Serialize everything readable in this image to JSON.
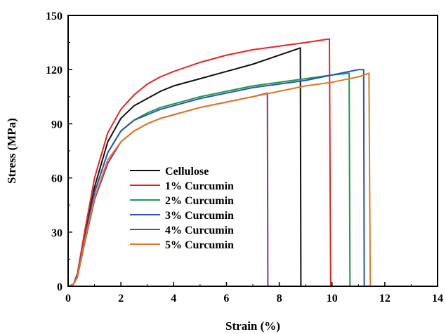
{
  "chart_data": {
    "type": "line",
    "title": "",
    "xlabel": "Strain (%)",
    "ylabel": "Stress (MPa)",
    "xlim": [
      0,
      14
    ],
    "ylim": [
      0,
      150
    ],
    "xticks": [
      0,
      2,
      4,
      6,
      8,
      10,
      12,
      14
    ],
    "yticks": [
      0,
      30,
      60,
      90,
      120,
      150
    ],
    "grid": false,
    "legend_position": "lower-center",
    "series": [
      {
        "name": "Cellulose",
        "color": "#111111",
        "points": [
          [
            0,
            0
          ],
          [
            0.2,
            1
          ],
          [
            0.35,
            6
          ],
          [
            0.6,
            25
          ],
          [
            1.0,
            55
          ],
          [
            1.5,
            80
          ],
          [
            2.0,
            93
          ],
          [
            2.5,
            100
          ],
          [
            3.0,
            104
          ],
          [
            3.5,
            108
          ],
          [
            4.0,
            111
          ],
          [
            5.0,
            115
          ],
          [
            6.0,
            119
          ],
          [
            7.0,
            123
          ],
          [
            8.0,
            128
          ],
          [
            8.8,
            132
          ],
          [
            8.82,
            0
          ]
        ]
      },
      {
        "name": "1% Curcumin",
        "color": "#e8231f",
        "points": [
          [
            0,
            0
          ],
          [
            0.2,
            1
          ],
          [
            0.35,
            7
          ],
          [
            0.6,
            28
          ],
          [
            1.0,
            60
          ],
          [
            1.5,
            85
          ],
          [
            2.0,
            98
          ],
          [
            2.5,
            106
          ],
          [
            3.0,
            112
          ],
          [
            3.5,
            116
          ],
          [
            4.0,
            119
          ],
          [
            5.0,
            124
          ],
          [
            6.0,
            128
          ],
          [
            7.0,
            131
          ],
          [
            8.0,
            133
          ],
          [
            9.0,
            135
          ],
          [
            9.9,
            137
          ],
          [
            9.95,
            0
          ]
        ]
      },
      {
        "name": "2% Curcumin",
        "color": "#1e9a4a",
        "points": [
          [
            0,
            0
          ],
          [
            0.2,
            1
          ],
          [
            0.35,
            6
          ],
          [
            0.6,
            24
          ],
          [
            1.0,
            52
          ],
          [
            1.5,
            74
          ],
          [
            2.0,
            86
          ],
          [
            2.5,
            92
          ],
          [
            3.0,
            96
          ],
          [
            3.5,
            99
          ],
          [
            4.0,
            101
          ],
          [
            5.0,
            105
          ],
          [
            6.0,
            108
          ],
          [
            7.0,
            111
          ],
          [
            8.0,
            113
          ],
          [
            9.0,
            115
          ],
          [
            10.0,
            117
          ],
          [
            10.65,
            118
          ],
          [
            10.68,
            0
          ]
        ]
      },
      {
        "name": "3% Curcumin",
        "color": "#2a55b8",
        "points": [
          [
            0,
            0
          ],
          [
            0.2,
            1
          ],
          [
            0.35,
            6
          ],
          [
            0.6,
            24
          ],
          [
            1.0,
            52
          ],
          [
            1.5,
            74
          ],
          [
            2.0,
            86
          ],
          [
            2.5,
            92
          ],
          [
            3.0,
            95
          ],
          [
            3.5,
            98
          ],
          [
            4.0,
            100
          ],
          [
            5.0,
            104
          ],
          [
            6.0,
            107
          ],
          [
            7.0,
            110
          ],
          [
            8.0,
            112
          ],
          [
            9.0,
            114
          ],
          [
            10.0,
            117
          ],
          [
            11.0,
            120
          ],
          [
            11.2,
            120
          ],
          [
            11.22,
            0
          ]
        ]
      },
      {
        "name": "4% Curcumin",
        "color": "#8a2f9c",
        "points": [
          [
            0,
            0
          ],
          [
            0.2,
            1
          ],
          [
            0.35,
            5
          ],
          [
            0.6,
            22
          ],
          [
            1.0,
            48
          ],
          [
            1.5,
            68
          ],
          [
            2.0,
            80
          ],
          [
            2.5,
            86
          ],
          [
            3.0,
            90
          ],
          [
            3.5,
            93
          ],
          [
            4.0,
            95
          ],
          [
            5.0,
            99
          ],
          [
            6.0,
            102
          ],
          [
            7.0,
            105
          ],
          [
            7.55,
            107
          ],
          [
            7.57,
            0
          ]
        ]
      },
      {
        "name": "5% Curcumin",
        "color": "#e3781f",
        "points": [
          [
            0,
            0
          ],
          [
            0.2,
            1
          ],
          [
            0.35,
            5
          ],
          [
            0.6,
            23
          ],
          [
            1.0,
            49
          ],
          [
            1.5,
            70
          ],
          [
            2.0,
            80
          ],
          [
            2.5,
            86
          ],
          [
            3.0,
            90
          ],
          [
            3.5,
            93
          ],
          [
            4.0,
            95
          ],
          [
            5.0,
            99
          ],
          [
            6.0,
            102
          ],
          [
            7.0,
            105
          ],
          [
            8.0,
            108
          ],
          [
            9.0,
            111
          ],
          [
            10.0,
            113
          ],
          [
            11.0,
            116
          ],
          [
            11.4,
            118
          ],
          [
            11.45,
            0
          ]
        ]
      }
    ]
  }
}
